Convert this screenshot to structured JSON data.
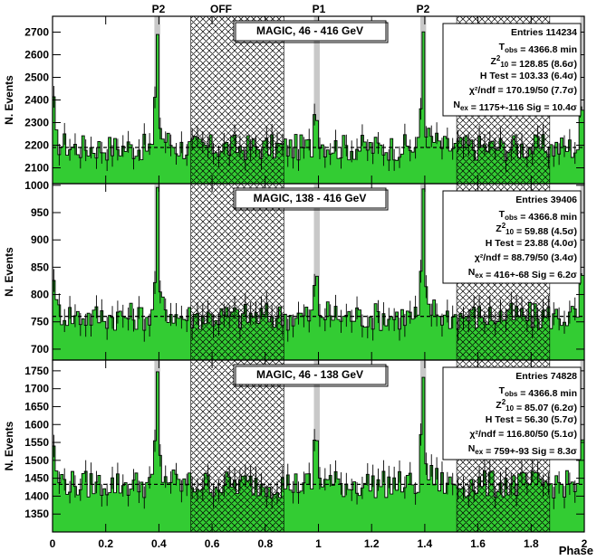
{
  "figure": {
    "region_labels": [
      "P2",
      "OFF",
      "P1",
      "P2"
    ],
    "xlabel": "Phase",
    "colors": {
      "histogram_fill": "#33cc33",
      "histogram_line": "#000000",
      "signal_band": "#c8c8c8",
      "background_hatch": "#000000",
      "frame": "#000000"
    }
  },
  "chart_data": [
    {
      "type": "bar",
      "title": "MAGIC, 46 - 416 GeV",
      "ylabel": "N. Events",
      "xlim": [
        0,
        2
      ],
      "ylim": [
        2030,
        2770
      ],
      "x_ticks": [
        "0",
        "0.2",
        "0.4",
        "0.6",
        "0.8",
        "1",
        "1.2",
        "1.4",
        "1.6",
        "1.8",
        "2"
      ],
      "y_ticks": [
        2100,
        2200,
        2300,
        2400,
        2500,
        2600,
        2700
      ],
      "baseline": 2190,
      "signal_regions": [
        [
          0.383,
          0.405
        ],
        [
          0.983,
          1.005
        ],
        [
          1.383,
          1.405
        ],
        [
          1.985,
          2.0
        ]
      ],
      "background_regions": [
        [
          0.52,
          0.87
        ],
        [
          1.52,
          1.87
        ]
      ],
      "peaks": [
        [
          0.0,
          2420
        ],
        [
          0.393,
          2690
        ],
        [
          0.99,
          2420
        ],
        [
          1.393,
          2690
        ],
        [
          1.99,
          2400
        ]
      ],
      "stats": {
        "entries_label": "Entries",
        "entries": "114234",
        "tobs_label": "T",
        "tobs_sub": "obs",
        "tobs": "= 4366.8 min",
        "z_label": "Z",
        "z_sup": "2",
        "z_sub": "10",
        "z": "= 128.85  (8.6σ)",
        "htest": "H Test = 103.33  (6.4σ)",
        "chi2": "χ²/ndf = 170.19/50  (7.7σ)",
        "nex_label": "N",
        "nex_sub": "ex",
        "nex": "= 1175+-116   Sig = 10.4σ"
      }
    },
    {
      "type": "bar",
      "title": "MAGIC, 138 - 416 GeV",
      "ylabel": "N. Events",
      "xlim": [
        0,
        2
      ],
      "ylim": [
        680,
        1003
      ],
      "x_ticks": [
        "0",
        "0.2",
        "0.4",
        "0.6",
        "0.8",
        "1",
        "1.2",
        "1.4",
        "1.6",
        "1.8",
        "2"
      ],
      "y_ticks": [
        700,
        750,
        800,
        850,
        900,
        950,
        1000
      ],
      "baseline": 760,
      "signal_regions": [
        [
          0.383,
          0.405
        ],
        [
          0.983,
          1.005
        ],
        [
          1.383,
          1.405
        ],
        [
          1.985,
          2.0
        ]
      ],
      "background_regions": [
        [
          0.52,
          0.87
        ],
        [
          1.52,
          1.87
        ]
      ],
      "peaks": [
        [
          0.0,
          870
        ],
        [
          0.393,
          963
        ],
        [
          0.99,
          838
        ],
        [
          1.393,
          963
        ],
        [
          1.99,
          850
        ]
      ],
      "stats": {
        "entries_label": "Entries",
        "entries": "39406",
        "tobs_label": "T",
        "tobs_sub": "obs",
        "tobs": "= 4366.8 min",
        "z_label": "Z",
        "z_sup": "2",
        "z_sub": "10",
        "z": "= 59.88  (4.5σ)",
        "htest": "H Test = 23.88  (4.0σ)",
        "chi2": "χ²/ndf = 88.79/50  (3.4σ)",
        "nex_label": "N",
        "nex_sub": "ex",
        "nex": "= 416+-68   Sig = 6.2σ"
      }
    },
    {
      "type": "bar",
      "title": "MAGIC, 46 - 138 GeV",
      "ylabel": "N. Events",
      "xlim": [
        0,
        2
      ],
      "ylim": [
        1300,
        1780
      ],
      "x_ticks": [
        "0",
        "0.2",
        "0.4",
        "0.6",
        "0.8",
        "1",
        "1.2",
        "1.4",
        "1.6",
        "1.8",
        "2"
      ],
      "y_ticks": [
        1350,
        1400,
        1450,
        1500,
        1550,
        1600,
        1650,
        1700,
        1750
      ],
      "baseline": 1433,
      "signal_regions": [
        [
          0.383,
          0.405
        ],
        [
          0.983,
          1.005
        ],
        [
          1.383,
          1.405
        ],
        [
          1.985,
          2.0
        ]
      ],
      "background_regions": [
        [
          0.52,
          0.87
        ],
        [
          1.52,
          1.87
        ]
      ],
      "peaks": [
        [
          0.0,
          1585
        ],
        [
          0.393,
          1725
        ],
        [
          0.99,
          1590
        ],
        [
          1.393,
          1725
        ],
        [
          1.99,
          1575
        ]
      ],
      "stats": {
        "entries_label": "Entries",
        "entries": "74828",
        "tobs_label": "T",
        "tobs_sub": "obs",
        "tobs": "= 4366.8 min",
        "z_label": "Z",
        "z_sup": "2",
        "z_sub": "10",
        "z": "= 85.07  (6.2σ)",
        "htest": "H Test = 56.30  (5.7σ)",
        "chi2": "χ²/ndf = 116.80/50  (5.1σ)",
        "nex_label": "N",
        "nex_sub": "ex",
        "nex": "= 759+-93   Sig = 8.3σ"
      }
    }
  ]
}
